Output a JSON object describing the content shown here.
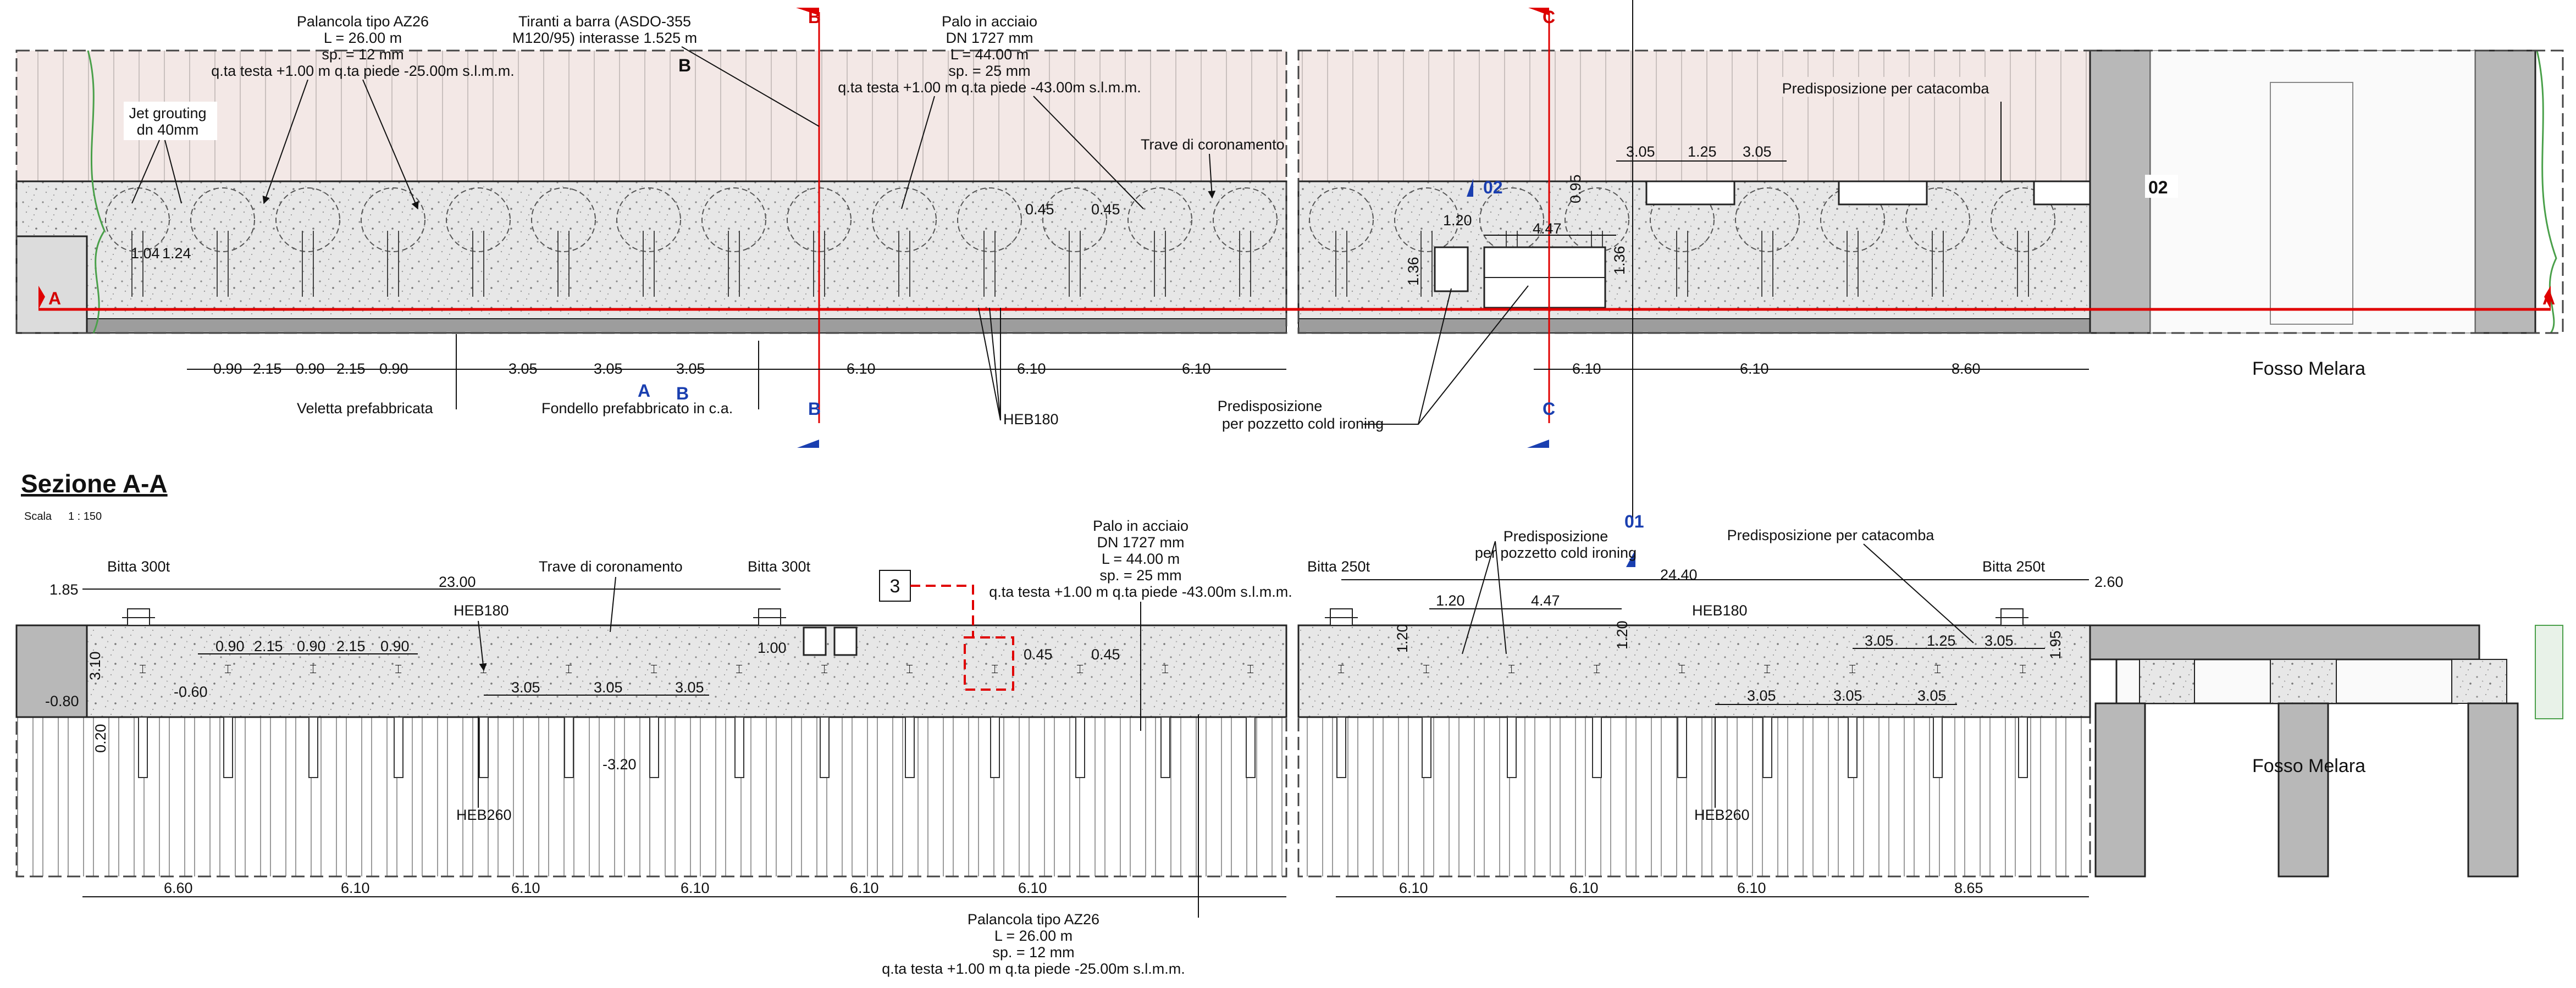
{
  "plan": {
    "left_notes": {
      "palancola": [
        "Palancola tipo AZ26",
        "L = 26.00 m",
        "sp. = 12 mm",
        "q.ta testa +1.00 m q.ta piede -25.00m s.l.m.m."
      ],
      "tiranti": [
        "Tiranti a barra (ASDO-355",
        "M120/95) interasse 1.525 m"
      ],
      "palo": [
        "Palo in acciaio",
        "DN 1727 mm",
        "L = 44.00 m",
        "sp. = 25 mm",
        "q.ta testa +1.00 m q.ta piede -43.00m s.l.m.m."
      ],
      "jet": [
        "Jet grouting",
        "dn 40mm"
      ],
      "trave": "Trave di coronamento",
      "veletta": "Veletta prefabbricata",
      "fondello": "Fondello prefabbricato in c.a.",
      "heb180": "HEB180"
    },
    "right_notes": {
      "catacomba": "Predisposizione per catacomba",
      "pozzetto": [
        "Predisposizione",
        "per pozzetto cold ironing"
      ],
      "fosso": "Fosso Melara"
    },
    "inner_dims": {
      "d104": "1.04",
      "d124": "1.24",
      "d045a": "0.45",
      "d045b": "0.45",
      "d120": "1.20",
      "d447": "4.47",
      "d095": "0.95",
      "d136a": "1.36",
      "d136b": "1.36",
      "top305a": "3.05",
      "top125": "1.25",
      "top305b": "3.05"
    },
    "bottom_dims": {
      "d1": "0.90",
      "d2": "2.15",
      "d3": "0.90",
      "d4": "2.15",
      "d5": "0.90",
      "d6": "3.05",
      "d7": "3.05",
      "d8": "3.05",
      "d9": "6.10",
      "d10": "6.10",
      "d11": "6.10",
      "r1": "6.10",
      "r2": "6.10",
      "r3": "8.60"
    },
    "markers": {
      "A": "A",
      "B": "B",
      "C": "C",
      "n02": "02",
      "n01": "01"
    }
  },
  "section": {
    "title": "Sezione A-A",
    "scale_label": "Scala",
    "scale_value": "1 : 150",
    "callout": "3",
    "notes": {
      "bitta300a": "Bitta 300t",
      "bitta300b": "Bitta 300t",
      "bitta250a": "Bitta 250t",
      "bitta250b": "Bitta 250t",
      "trave": "Trave di coronamento",
      "heb180a": "HEB180",
      "heb180b": "HEB180",
      "heb260a": "HEB260",
      "heb260b": "HEB260",
      "palo": [
        "Palo in acciaio",
        "DN 1727 mm",
        "L = 44.00 m",
        "sp. = 25 mm",
        "q.ta testa +1.00 m q.ta piede -43.00m s.l.m.m."
      ],
      "pozzetto": [
        "Predisposizione",
        "per pozzetto cold ironing"
      ],
      "catacomba": "Predisposizione per catacomba",
      "palancola": [
        "Palancola tipo AZ26",
        "L = 26.00 m",
        "sp. = 12 mm",
        "q.ta testa +1.00 m q.ta piede -25.00m s.l.m.m."
      ],
      "fosso": "Fosso Melara"
    },
    "dims": {
      "d185": "1.85",
      "d2300": "23.00",
      "d2440": "24.40",
      "d260": "2.60",
      "d310": "3.10",
      "d020": "0.20",
      "m080": "-0.80",
      "m060": "-0.60",
      "m320": "-3.20",
      "p100": "1.00",
      "t090a": "0.90",
      "t215a": "2.15",
      "t090b": "0.90",
      "t215b": "2.15",
      "t090c": "0.90",
      "t305a": "3.05",
      "t305b": "3.05",
      "t305c": "3.05",
      "t045a": "0.45",
      "t045b": "0.45",
      "r120": "1.20",
      "r447": "4.47",
      "v120a": "1.20",
      "v120b": "1.20",
      "r305a": "3.05",
      "r125": "1.25",
      "r305b": "3.05",
      "v195": "1.95",
      "r305c": "3.05",
      "r305d": "3.05",
      "r305e": "3.05",
      "b660": "6.60",
      "b610a": "6.10",
      "b610b": "6.10",
      "b610c": "6.10",
      "b610d": "6.10",
      "b610e": "6.10",
      "b610f": "6.10",
      "b610g": "6.10",
      "b610h": "6.10",
      "b865": "8.65"
    }
  },
  "colors": {
    "red_line": "#e00000",
    "marker_blue": "#1a3fb0",
    "concrete": "#e6e6e6",
    "backfill": "#f2e7e5",
    "steel_gray": "#b8b8b8"
  }
}
